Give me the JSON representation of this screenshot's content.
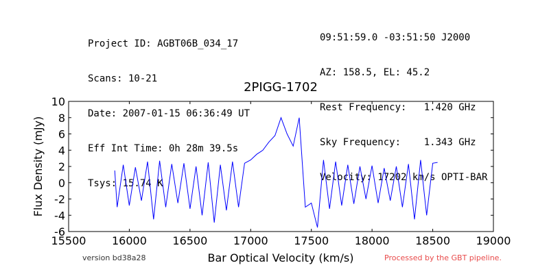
{
  "header_left": {
    "project": "Project ID: AGBT06B_034_17",
    "scans": "Scans: 10-21",
    "date": "Date: 2007-01-15 06:36:49 UT",
    "int_time": "Eff Int Time: 0h 28m 39.5s",
    "tsys": "Tsys: 15.74 K"
  },
  "header_right": {
    "coords": "09:51:59.0 -03:51:50 J2000",
    "azel": "AZ: 158.5, EL: 45.2",
    "rest_freq": "Rest Frequency:   1.420 GHz",
    "sky_freq": "Sky Frequency:    1.343 GHz",
    "velocity": "Velocity: 17202 km/s OPTI-BAR"
  },
  "footer": {
    "version": "version bd38a28",
    "processed": "Processed by the GBT pipeline."
  },
  "colors": {
    "series": "#0000ff",
    "axis": "#000000",
    "processed_text": "#e84a4a"
  },
  "chart_data": {
    "type": "line",
    "title": "2PIGG-1702",
    "xlabel": "Bar Optical Velocity (km/s)",
    "ylabel": "Flux Density (mJy)",
    "xlim": [
      15500,
      19000
    ],
    "ylim": [
      -6,
      10
    ],
    "xticks": [
      15500,
      16000,
      16500,
      17000,
      17500,
      18000,
      18500,
      19000
    ],
    "yticks": [
      -6,
      -4,
      -2,
      0,
      2,
      4,
      6,
      8,
      10
    ],
    "grid": false,
    "series": [
      {
        "x": [
          15880,
          15900,
          15950,
          16000,
          16050,
          16100,
          16150,
          16200,
          16250,
          16300,
          16350,
          16400,
          16450,
          16500,
          16550,
          16600,
          16650,
          16700,
          16750,
          16800,
          16850,
          16900,
          16950,
          17000,
          17050,
          17100,
          17150,
          17200,
          17250,
          17300,
          17350,
          17400,
          17450,
          17500,
          17550,
          17600,
          17650,
          17700,
          17750,
          17800,
          17850,
          17900,
          17950,
          18000,
          18050,
          18100,
          18150,
          18200,
          18250,
          18300,
          18350,
          18400,
          18450,
          18500,
          18540
        ],
        "y": [
          1.5,
          -3.0,
          2.2,
          -2.8,
          1.9,
          -2.2,
          2.6,
          -4.5,
          2.7,
          -3.0,
          2.3,
          -2.5,
          2.4,
          -3.2,
          2.0,
          -4.0,
          2.5,
          -4.9,
          2.2,
          -3.4,
          2.6,
          -3.0,
          2.4,
          2.8,
          3.5,
          4.0,
          5.0,
          5.8,
          8.0,
          6.0,
          4.5,
          8.0,
          -3.0,
          -2.5,
          -5.5,
          2.8,
          -3.2,
          2.6,
          -2.8,
          2.2,
          -2.6,
          2.0,
          -2.0,
          2.1,
          -2.5,
          1.8,
          -2.2,
          2.0,
          -3.0,
          2.3,
          -4.5,
          2.8,
          -4.0,
          2.4,
          2.5
        ]
      }
    ]
  }
}
